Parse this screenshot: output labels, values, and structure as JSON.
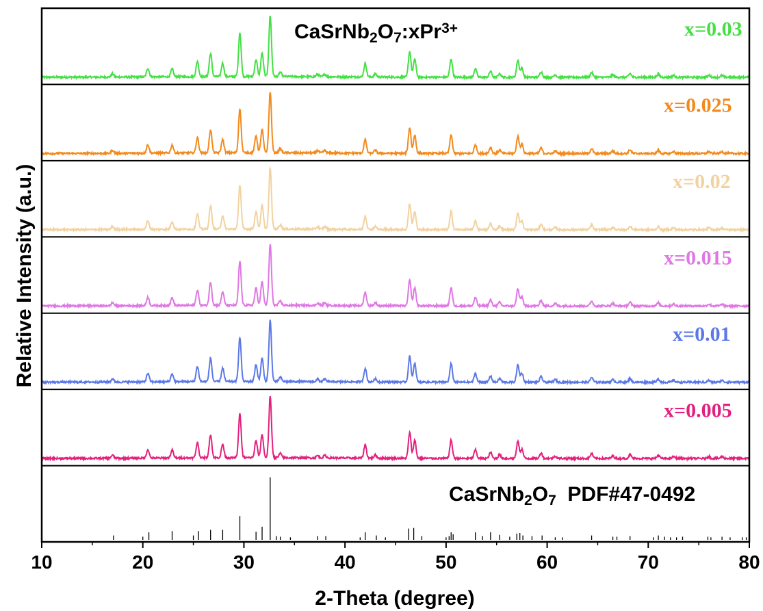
{
  "chart_data": {
    "type": "line",
    "layout": "stacked-panels",
    "xlabel": "2-Theta (degree)",
    "ylabel": "Relative Intensity (a.u.)",
    "xlim": [
      10,
      80
    ],
    "xticks": [
      10,
      20,
      30,
      40,
      50,
      60,
      70,
      80
    ],
    "grid": false,
    "title_parts": {
      "base": "CaSrNb",
      "sub1": "2",
      "mid": "O",
      "sub2": "7",
      "tail": ":xPr",
      "sup": "3+"
    },
    "reference_label_parts": {
      "base": "CaSrNb",
      "sub1": "2",
      "mid": "O",
      "sub2": "7",
      "tail": "  PDF#47-0492"
    },
    "peaks": [
      {
        "x": 17.0,
        "h": 0.05
      },
      {
        "x": 20.5,
        "h": 0.14
      },
      {
        "x": 22.9,
        "h": 0.13
      },
      {
        "x": 25.4,
        "h": 0.25
      },
      {
        "x": 26.7,
        "h": 0.38
      },
      {
        "x": 27.9,
        "h": 0.22
      },
      {
        "x": 29.6,
        "h": 0.72
      },
      {
        "x": 31.2,
        "h": 0.28
      },
      {
        "x": 31.8,
        "h": 0.38
      },
      {
        "x": 32.6,
        "h": 1.0
      },
      {
        "x": 33.6,
        "h": 0.07
      },
      {
        "x": 37.3,
        "h": 0.04
      },
      {
        "x": 38.0,
        "h": 0.04
      },
      {
        "x": 42.0,
        "h": 0.22
      },
      {
        "x": 43.0,
        "h": 0.05
      },
      {
        "x": 46.4,
        "h": 0.42
      },
      {
        "x": 46.9,
        "h": 0.3
      },
      {
        "x": 50.5,
        "h": 0.3
      },
      {
        "x": 52.9,
        "h": 0.14
      },
      {
        "x": 54.4,
        "h": 0.1
      },
      {
        "x": 55.3,
        "h": 0.06
      },
      {
        "x": 57.1,
        "h": 0.28
      },
      {
        "x": 57.5,
        "h": 0.15
      },
      {
        "x": 59.4,
        "h": 0.09
      },
      {
        "x": 60.8,
        "h": 0.04
      },
      {
        "x": 64.4,
        "h": 0.08
      },
      {
        "x": 66.5,
        "h": 0.04
      },
      {
        "x": 68.2,
        "h": 0.06
      },
      {
        "x": 71.0,
        "h": 0.05
      },
      {
        "x": 72.5,
        "h": 0.03
      },
      {
        "x": 76.0,
        "h": 0.03
      },
      {
        "x": 77.3,
        "h": 0.03
      }
    ],
    "series": [
      {
        "name": "x=0.03",
        "color": "#44e044"
      },
      {
        "name": "x=0.025",
        "color": "#f28a1d"
      },
      {
        "name": "x=0.02",
        "color": "#f2d2a0"
      },
      {
        "name": "x=0.015",
        "color": "#df77e5"
      },
      {
        "name": "x=0.01",
        "color": "#5b78e6"
      },
      {
        "name": "x=0.005",
        "color": "#e3207d"
      }
    ],
    "reference_pattern": {
      "name": "CaSrNb2O7 PDF#47-0492",
      "color": "#000000",
      "lines": [
        {
          "x": 17.1,
          "h": 0.07
        },
        {
          "x": 20.0,
          "h": 0.05
        },
        {
          "x": 20.6,
          "h": 0.12
        },
        {
          "x": 22.9,
          "h": 0.14
        },
        {
          "x": 25.0,
          "h": 0.07
        },
        {
          "x": 25.5,
          "h": 0.14
        },
        {
          "x": 26.7,
          "h": 0.16
        },
        {
          "x": 27.9,
          "h": 0.16
        },
        {
          "x": 29.6,
          "h": 0.38
        },
        {
          "x": 31.2,
          "h": 0.13
        },
        {
          "x": 31.8,
          "h": 0.21
        },
        {
          "x": 32.6,
          "h": 1.0
        },
        {
          "x": 33.2,
          "h": 0.06
        },
        {
          "x": 33.6,
          "h": 0.05
        },
        {
          "x": 34.6,
          "h": 0.04
        },
        {
          "x": 37.3,
          "h": 0.06
        },
        {
          "x": 38.1,
          "h": 0.06
        },
        {
          "x": 41.5,
          "h": 0.04
        },
        {
          "x": 42.0,
          "h": 0.12
        },
        {
          "x": 43.1,
          "h": 0.07
        },
        {
          "x": 44.0,
          "h": 0.04
        },
        {
          "x": 46.3,
          "h": 0.18
        },
        {
          "x": 46.8,
          "h": 0.19
        },
        {
          "x": 47.6,
          "h": 0.06
        },
        {
          "x": 50.0,
          "h": 0.04
        },
        {
          "x": 50.3,
          "h": 0.06
        },
        {
          "x": 50.5,
          "h": 0.12
        },
        {
          "x": 50.7,
          "h": 0.09
        },
        {
          "x": 52.9,
          "h": 0.12
        },
        {
          "x": 53.6,
          "h": 0.06
        },
        {
          "x": 54.4,
          "h": 0.12
        },
        {
          "x": 55.3,
          "h": 0.08
        },
        {
          "x": 56.3,
          "h": 0.05
        },
        {
          "x": 57.0,
          "h": 0.1
        },
        {
          "x": 57.3,
          "h": 0.11
        },
        {
          "x": 57.6,
          "h": 0.07
        },
        {
          "x": 58.5,
          "h": 0.06
        },
        {
          "x": 59.5,
          "h": 0.07
        },
        {
          "x": 60.8,
          "h": 0.04
        },
        {
          "x": 61.5,
          "h": 0.04
        },
        {
          "x": 64.4,
          "h": 0.07
        },
        {
          "x": 66.5,
          "h": 0.05
        },
        {
          "x": 66.9,
          "h": 0.05
        },
        {
          "x": 68.2,
          "h": 0.06
        },
        {
          "x": 70.5,
          "h": 0.04
        },
        {
          "x": 71.0,
          "h": 0.07
        },
        {
          "x": 71.6,
          "h": 0.05
        },
        {
          "x": 72.2,
          "h": 0.04
        },
        {
          "x": 72.8,
          "h": 0.04
        },
        {
          "x": 73.4,
          "h": 0.05
        },
        {
          "x": 75.9,
          "h": 0.05
        },
        {
          "x": 76.2,
          "h": 0.04
        },
        {
          "x": 77.3,
          "h": 0.05
        },
        {
          "x": 78.1,
          "h": 0.04
        },
        {
          "x": 79.3,
          "h": 0.04
        },
        {
          "x": 79.7,
          "h": 0.04
        }
      ]
    }
  }
}
